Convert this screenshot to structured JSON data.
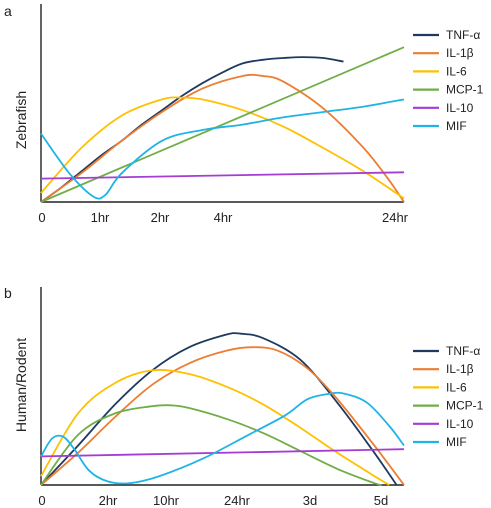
{
  "chart_data": [
    {
      "type": "line",
      "panel": "a",
      "title": "",
      "ylabel": "Zebrafish",
      "xlabel": "",
      "categories": [
        "0",
        "1hr",
        "2hr",
        "4hr",
        "24hr"
      ],
      "ylim": [
        0,
        100
      ],
      "legend_position": "right",
      "series": [
        {
          "name": "TNF-α",
          "color": "#1f3a5f",
          "points": [
            [
              0,
              0
            ],
            [
              0.25,
              8
            ],
            [
              0.5,
              17
            ],
            [
              0.75,
              26
            ],
            [
              1,
              34
            ],
            [
              1.25,
              43
            ],
            [
              1.5,
              51
            ],
            [
              1.75,
              59
            ],
            [
              2,
              66
            ],
            [
              2.25,
              72
            ],
            [
              2.5,
              77
            ],
            [
              2.75,
              79
            ],
            [
              3,
              80
            ],
            [
              3.25,
              80.5
            ],
            [
              3.5,
              80
            ],
            [
              3.75,
              78
            ]
          ]
        },
        {
          "name": "IL-1β",
          "color": "#ed7d31",
          "points": [
            [
              0,
              0
            ],
            [
              0.5,
              16
            ],
            [
              1,
              34
            ],
            [
              1.5,
              50
            ],
            [
              2,
              63
            ],
            [
              2.5,
              70
            ],
            [
              2.75,
              70
            ],
            [
              3,
              67
            ],
            [
              3.5,
              52
            ],
            [
              4,
              30
            ],
            [
              4.3,
              13
            ],
            [
              4.5,
              0
            ]
          ]
        },
        {
          "name": "IL-6",
          "color": "#ffc000",
          "points": [
            [
              0,
              5
            ],
            [
              0.5,
              30
            ],
            [
              1,
              48
            ],
            [
              1.5,
              57
            ],
            [
              1.75,
              58
            ],
            [
              2,
              57
            ],
            [
              2.5,
              51
            ],
            [
              3,
              42
            ],
            [
              3.5,
              30
            ],
            [
              4,
              17
            ],
            [
              4.5,
              2
            ]
          ]
        },
        {
          "name": "MCP-1",
          "color": "#70ad47",
          "points": [
            [
              0,
              0
            ],
            [
              4.5,
              86
            ]
          ]
        },
        {
          "name": "IL-10",
          "color": "#a53cd4",
          "points": [
            [
              0,
              13
            ],
            [
              4.5,
              16.5
            ]
          ]
        },
        {
          "name": "MIF",
          "color": "#1eb4e6",
          "points": [
            [
              0,
              38
            ],
            [
              0.35,
              16
            ],
            [
              0.65,
              3
            ],
            [
              0.8,
              4
            ],
            [
              1,
              16
            ],
            [
              1.5,
              34
            ],
            [
              2,
              40
            ],
            [
              2.5,
              43
            ],
            [
              3,
              47
            ],
            [
              3.5,
              50
            ],
            [
              4,
              53
            ],
            [
              4.5,
              57
            ]
          ]
        }
      ]
    },
    {
      "type": "line",
      "panel": "b",
      "title": "",
      "ylabel": "Human/Rodent",
      "xlabel": "",
      "categories": [
        "0",
        "2hr",
        "10hr",
        "24hr",
        "3d",
        "5d"
      ],
      "ylim": [
        0,
        100
      ],
      "legend_position": "right",
      "series": [
        {
          "name": "TNF-α",
          "color": "#1f3a5f",
          "points": [
            [
              0,
              0
            ],
            [
              0.5,
              22
            ],
            [
              1,
              45
            ],
            [
              1.5,
              64
            ],
            [
              2,
              77
            ],
            [
              2.5,
              84
            ],
            [
              2.7,
              84.5
            ],
            [
              3,
              82
            ],
            [
              3.5,
              70
            ],
            [
              4,
              46
            ],
            [
              4.5,
              18
            ],
            [
              4.8,
              0
            ]
          ]
        },
        {
          "name": "IL-1β",
          "color": "#ed7d31",
          "points": [
            [
              0,
              0
            ],
            [
              0.5,
              18
            ],
            [
              1,
              38
            ],
            [
              1.5,
              56
            ],
            [
              2,
              68
            ],
            [
              2.5,
              75
            ],
            [
              2.85,
              77
            ],
            [
              3.2,
              75
            ],
            [
              3.6,
              65
            ],
            [
              4,
              48
            ],
            [
              4.5,
              22
            ],
            [
              4.9,
              0
            ]
          ]
        },
        {
          "name": "IL-6",
          "color": "#ffc000",
          "points": [
            [
              0,
              5
            ],
            [
              0.5,
              40
            ],
            [
              1,
              57
            ],
            [
              1.5,
              64
            ],
            [
              2,
              62
            ],
            [
              2.5,
              55
            ],
            [
              3,
              45
            ],
            [
              3.5,
              32
            ],
            [
              4,
              18
            ],
            [
              4.5,
              5
            ],
            [
              4.7,
              0
            ]
          ]
        },
        {
          "name": "MCP-1",
          "color": "#70ad47",
          "points": [
            [
              0,
              0
            ],
            [
              0.5,
              28
            ],
            [
              1,
              40
            ],
            [
              1.5,
              44
            ],
            [
              1.75,
              44.5
            ],
            [
              2,
              43
            ],
            [
              2.5,
              37
            ],
            [
              3,
              29
            ],
            [
              3.5,
              19
            ],
            [
              4,
              9
            ],
            [
              4.5,
              1
            ],
            [
              4.6,
              0
            ]
          ]
        },
        {
          "name": "IL-10",
          "color": "#a53cd4",
          "points": [
            [
              0,
              16
            ],
            [
              4.9,
              20
            ]
          ]
        },
        {
          "name": "MIF",
          "color": "#1eb4e6",
          "points": [
            [
              0,
              16
            ],
            [
              0.15,
              26
            ],
            [
              0.3,
              27
            ],
            [
              0.45,
              20
            ],
            [
              0.65,
              8
            ],
            [
              0.9,
              2
            ],
            [
              1.2,
              1
            ],
            [
              1.6,
              5
            ],
            [
              2.2,
              15
            ],
            [
              2.8,
              28
            ],
            [
              3.3,
              39
            ],
            [
              3.6,
              48
            ],
            [
              3.9,
              51
            ],
            [
              4.1,
              51
            ],
            [
              4.4,
              46
            ],
            [
              4.7,
              33
            ],
            [
              4.9,
              22
            ]
          ]
        }
      ]
    }
  ]
}
